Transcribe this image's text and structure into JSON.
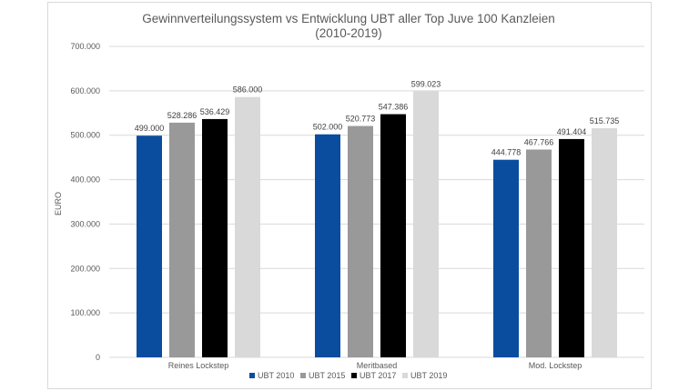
{
  "chart_data": {
    "type": "bar",
    "title": "Gewinnverteilungssystem vs Entwicklung UBT aller Top Juve 100 Kanzleien",
    "subtitle": "(2010-2019)",
    "xlabel": "",
    "ylabel": "EURO",
    "ylim": [
      0,
      700000
    ],
    "yticks": [
      "0",
      "100.000",
      "200.000",
      "300.000",
      "400.000",
      "500.000",
      "600.000",
      "700.000"
    ],
    "grid": true,
    "legend_position": "bottom",
    "categories": [
      "Reines Lockstep",
      "Meritbased",
      "Mod. Lockstep"
    ],
    "series": [
      {
        "name": "UBT 2010",
        "color": "#0a4d9e",
        "values": [
          499000,
          502000,
          444778
        ],
        "labels": [
          "499.000",
          "502.000",
          "444.778"
        ]
      },
      {
        "name": "UBT 2015",
        "color": "#999999",
        "values": [
          528286,
          520773,
          467766
        ],
        "labels": [
          "528.286",
          "520.773",
          "467.766"
        ]
      },
      {
        "name": "UBT 2017",
        "color": "#000000",
        "values": [
          536429,
          547386,
          491404
        ],
        "labels": [
          "536.429",
          "547.386",
          "491.404"
        ]
      },
      {
        "name": "UBT 2019",
        "color": "#d9d9d9",
        "values": [
          586000,
          599023,
          515735
        ],
        "labels": [
          "586.000",
          "599.023",
          "515.735"
        ]
      }
    ]
  }
}
